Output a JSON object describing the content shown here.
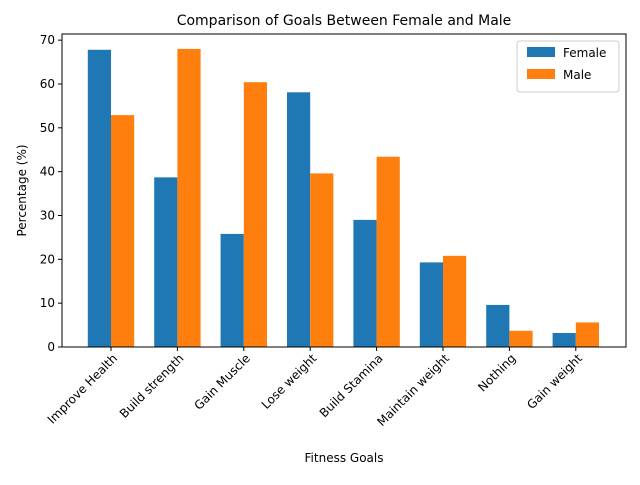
{
  "chart_data": {
    "type": "bar",
    "title": "Comparison of Goals Between Female and Male",
    "xlabel": "Fitness Goals",
    "ylabel": "Percentage (%)",
    "categories": [
      "Improve Health",
      "Build strength",
      "Gain Muscle",
      "Lose weight",
      "Build Stamina",
      "Maintain weight",
      "Nothing",
      "Gain weight"
    ],
    "series": [
      {
        "name": "Female",
        "color": "#1f77b4",
        "values": [
          67.8,
          38.7,
          25.8,
          58.1,
          29.0,
          19.3,
          9.6,
          3.2
        ]
      },
      {
        "name": "Male",
        "color": "#ff7f0e",
        "values": [
          52.9,
          68.0,
          60.4,
          39.6,
          43.4,
          20.8,
          3.7,
          5.6
        ]
      }
    ],
    "ylim": [
      0,
      71.4
    ],
    "yticks": [
      0,
      10,
      20,
      30,
      40,
      50,
      60,
      70
    ],
    "yticks_labels": [
      "0",
      "10",
      "20",
      "30",
      "40",
      "50",
      "60",
      "70"
    ],
    "legend_position": "top-right",
    "grid": false
  }
}
